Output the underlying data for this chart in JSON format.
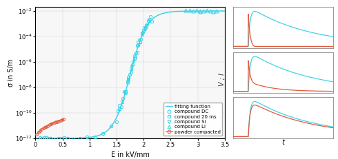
{
  "left_plot": {
    "xlim": [
      0,
      3.5
    ],
    "xlabel": "E in kV/mm",
    "ylabel": "σ in S/m",
    "fitting_color": "#3DD4E8",
    "cyan_color": "#3DD4E8",
    "powder_color": "#E05A3A",
    "legend_labels": [
      "fitting function",
      "compound DC",
      "compound 20 ms",
      "compound SI",
      "compound LI",
      "powder compacted"
    ],
    "background": "#f7f7f7",
    "yticks_log": [
      -12,
      -10,
      -8,
      -6,
      -4,
      -2
    ],
    "xticks": [
      0,
      0.5,
      1.0,
      1.5,
      2.0,
      2.5,
      3.0,
      3.5
    ]
  },
  "right_plots": {
    "cyan_color": "#3DD4E8",
    "red_color": "#E05A3A",
    "xlabel": "t",
    "ylabel": "V ; I"
  }
}
